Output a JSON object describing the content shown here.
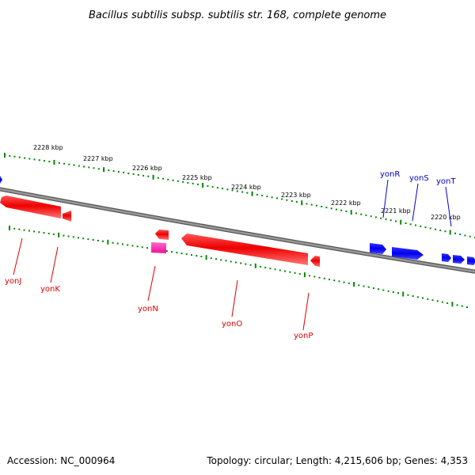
{
  "title": "Bacillus subtilis subsp. subtilis str. 168, complete genome",
  "footer": {
    "accession": "Accession: NC_000964",
    "summary": "Topology: circular; Length: 4,215,606 bp; Genes: 4,353"
  },
  "colors": {
    "backbone": "#888888",
    "ticks": "#008800",
    "forward_gene": "#0000ff",
    "reverse_gene": "#ff0000",
    "pseudo_gene": "#ff33aa",
    "label_red": "#dd0000",
    "label_blue": "#0000cc"
  },
  "scale_labels": [
    "2228 kbp",
    "2227 kbp",
    "2226 kbp",
    "2225 kbp",
    "2224 kbp",
    "2223 kbp",
    "2222 kbp",
    "2221 kbp",
    "2220 kbp"
  ],
  "gene_labels_reverse": [
    "yonJ",
    "yonK",
    "yonN",
    "yonO",
    "yonP"
  ],
  "gene_labels_forward": [
    "yonR",
    "yonS",
    "yonT"
  ]
}
